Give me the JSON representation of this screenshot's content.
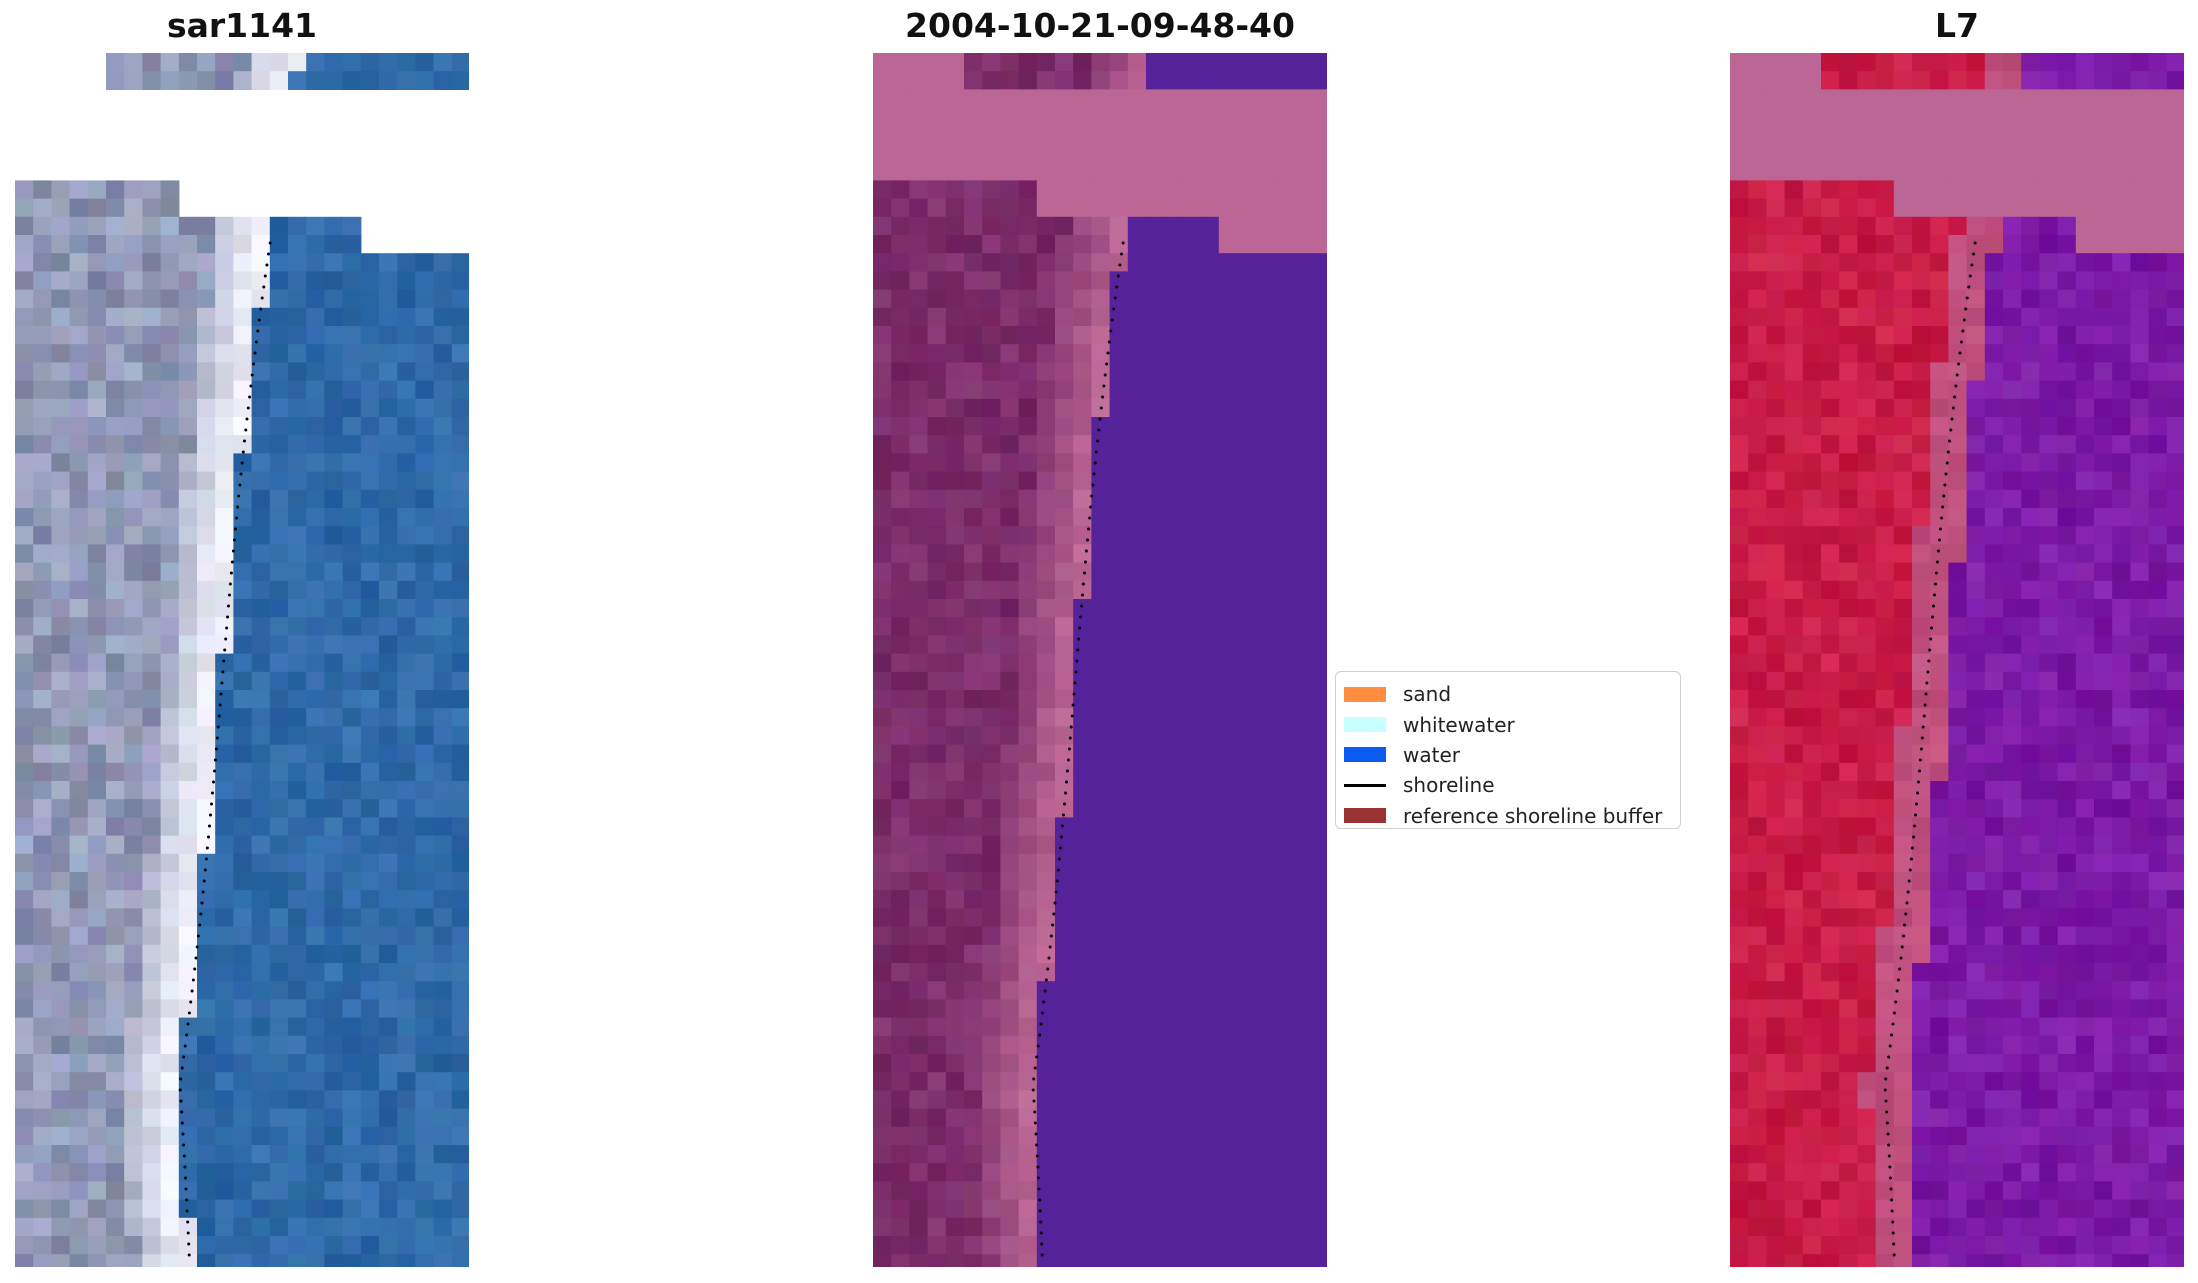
{
  "figure": {
    "panels": [
      {
        "id": "rgb",
        "title": "sar1141"
      },
      {
        "id": "classified",
        "title": "2004-10-21-09-48-40"
      },
      {
        "id": "index",
        "title": "L7"
      }
    ],
    "legend": {
      "items": [
        {
          "label": "sand",
          "color": "#ff8c3f",
          "kind": "patch"
        },
        {
          "label": "whitewater",
          "color": "#c8ffff",
          "kind": "patch"
        },
        {
          "label": "water",
          "color": "#0a5cf0",
          "kind": "patch"
        },
        {
          "label": "shoreline",
          "color": "#000000",
          "kind": "line"
        },
        {
          "label": "reference shoreline buffer",
          "color": "#993333",
          "kind": "patch"
        }
      ]
    },
    "colors": {
      "rgb_water": "#2f6aa8",
      "rgb_whitewater": "#eeeff8",
      "rgb_land": "#9198b6",
      "class_nodata": "#bb6694",
      "class_water": "#55229a",
      "class_land": "#7c2d6a",
      "index_nodata": "#bb6694",
      "index_land": "#c81d47",
      "index_water": "#7c1aa6",
      "shoreline": "#000000"
    }
  }
}
